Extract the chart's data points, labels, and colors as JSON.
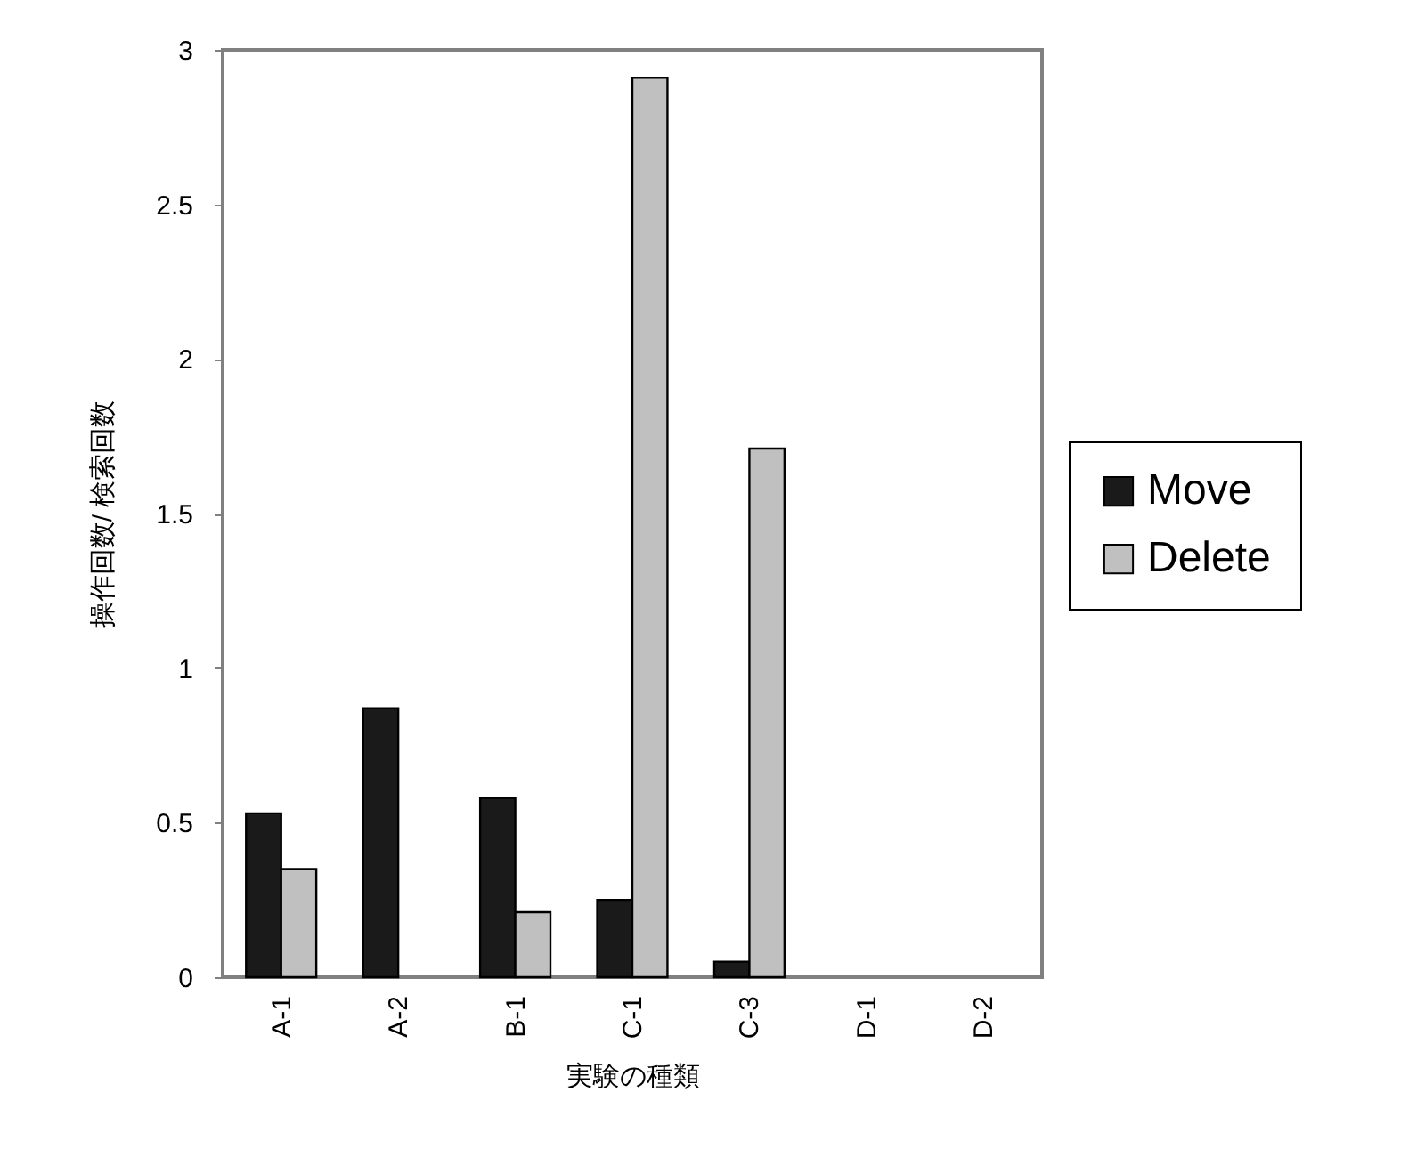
{
  "chart_data": {
    "type": "bar",
    "xlabel": "実験の種類",
    "ylabel": "操作回数/ 検索回数",
    "categories": [
      "A-1",
      "A-2",
      "B-1",
      "C-1",
      "C-3",
      "D-1",
      "D-2"
    ],
    "series": [
      {
        "name": "Move",
        "color": "#1a1a1a",
        "values": [
          0.53,
          0.87,
          0.58,
          0.25,
          0.05,
          0,
          0
        ]
      },
      {
        "name": "Delete",
        "color": "#c0c0c0",
        "values": [
          0.35,
          0,
          0.21,
          2.91,
          1.71,
          0,
          0
        ]
      }
    ],
    "ylim": [
      0,
      3
    ],
    "yticks": [
      0,
      0.5,
      1,
      1.5,
      2,
      2.5,
      3
    ],
    "grid": false,
    "legend": "right"
  }
}
